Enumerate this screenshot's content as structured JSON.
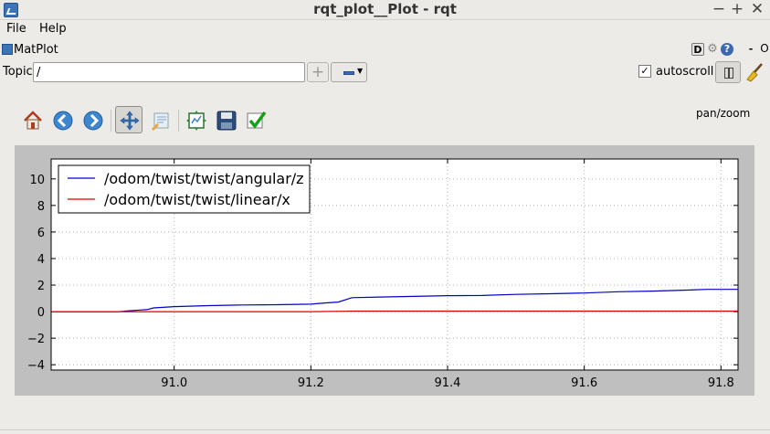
{
  "window": {
    "title": "rqt_plot__Plot - rqt",
    "controls": [
      "−",
      "+",
      "✕"
    ]
  },
  "menu": {
    "file": "File",
    "help": "Help"
  },
  "dock": {
    "title": "MatPlot",
    "d_label": "D",
    "help_label": "?",
    "min_label": "-",
    "close_label": "O"
  },
  "topic": {
    "label": "Topic",
    "value": "/",
    "add_label": "+",
    "autoscroll_label": "autoscroll",
    "autoscroll_checked": "✓"
  },
  "toolbar": {
    "items": [
      "home-icon",
      "back-icon",
      "forward-icon",
      "pan-icon",
      "configure-subplots-icon",
      "edit-axis-icon",
      "save-icon",
      "apply-icon"
    ],
    "mode": "pan/zoom"
  },
  "chart_data": {
    "type": "line",
    "xlim": [
      90.82,
      91.825
    ],
    "ylim": [
      -4.4,
      11.5
    ],
    "xticks": [
      91.0,
      91.2,
      91.4,
      91.6,
      91.8
    ],
    "xtick_labels": [
      "91.0",
      "91.2",
      "91.4",
      "91.6",
      "91.8"
    ],
    "yticks": [
      -4,
      -2,
      0,
      2,
      4,
      6,
      8,
      10
    ],
    "ytick_labels": [
      "−4",
      "−2",
      "0",
      "2",
      "4",
      "6",
      "8",
      "10"
    ],
    "grid": true,
    "legend_position": "upper-left",
    "series": [
      {
        "name": "/odom/twist/twist/angular/z",
        "color": "#0000cc",
        "x": [
          90.82,
          90.92,
          90.93,
          90.95,
          90.96,
          90.97,
          91.0,
          91.05,
          91.1,
          91.15,
          91.2,
          91.22,
          91.24,
          91.26,
          91.3,
          91.35,
          91.4,
          91.45,
          91.5,
          91.55,
          91.6,
          91.65,
          91.7,
          91.75,
          91.78,
          91.825
        ],
        "y": [
          0.0,
          0.0,
          0.05,
          0.12,
          0.15,
          0.28,
          0.38,
          0.45,
          0.5,
          0.52,
          0.56,
          0.65,
          0.72,
          1.05,
          1.1,
          1.15,
          1.2,
          1.22,
          1.3,
          1.35,
          1.4,
          1.5,
          1.55,
          1.62,
          1.68,
          1.68
        ]
      },
      {
        "name": "/odom/twist/twist/linear/x",
        "color": "#dd0000",
        "x": [
          90.82,
          91.0,
          91.2,
          91.26,
          91.4,
          91.6,
          91.8,
          91.825
        ],
        "y": [
          0.0,
          0.0,
          0.0,
          0.04,
          0.04,
          0.04,
          0.04,
          0.04
        ]
      }
    ]
  }
}
